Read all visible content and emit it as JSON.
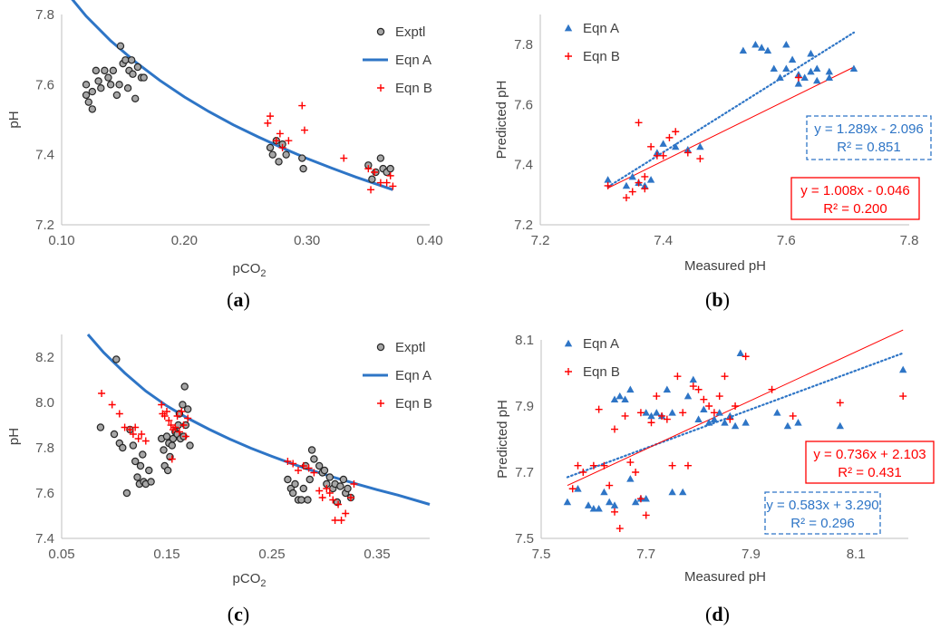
{
  "colors": {
    "exptl_fill": "#a6a6a6",
    "exptl_stroke": "#262626",
    "eqn_a": "#2e75c6",
    "eqn_b": "#ff0000"
  },
  "chart_data": [
    {
      "id": "a",
      "type": "scatter",
      "panel_label": "a",
      "xlabel": "pCO",
      "xlabel_sub": "2",
      "ylabel": "pH",
      "xlim": [
        0.1,
        0.4
      ],
      "ylim": [
        7.2,
        7.8
      ],
      "xticks": [
        "0.10",
        "0.20",
        "0.30",
        "0.40"
      ],
      "yticks": [
        "7.2",
        "7.4",
        "7.6",
        "7.8"
      ],
      "legend": [
        "Exptl",
        "Eqn A",
        "Eqn B"
      ],
      "curve": {
        "name": "Eqn A",
        "x": [
          0.1,
          0.12,
          0.14,
          0.16,
          0.18,
          0.2,
          0.22,
          0.24,
          0.26,
          0.28,
          0.3,
          0.32,
          0.34,
          0.36,
          0.37
        ],
        "y": [
          7.88,
          7.795,
          7.725,
          7.665,
          7.612,
          7.565,
          7.523,
          7.485,
          7.451,
          7.419,
          7.389,
          7.362,
          7.336,
          7.312,
          7.3
        ]
      },
      "exptl": [
        [
          0.12,
          7.6
        ],
        [
          0.12,
          7.57
        ],
        [
          0.122,
          7.55
        ],
        [
          0.125,
          7.53
        ],
        [
          0.125,
          7.58
        ],
        [
          0.128,
          7.64
        ],
        [
          0.13,
          7.61
        ],
        [
          0.132,
          7.59
        ],
        [
          0.135,
          7.64
        ],
        [
          0.138,
          7.62
        ],
        [
          0.14,
          7.6
        ],
        [
          0.142,
          7.64
        ],
        [
          0.145,
          7.57
        ],
        [
          0.147,
          7.6
        ],
        [
          0.148,
          7.71
        ],
        [
          0.15,
          7.66
        ],
        [
          0.152,
          7.67
        ],
        [
          0.154,
          7.59
        ],
        [
          0.155,
          7.64
        ],
        [
          0.157,
          7.67
        ],
        [
          0.158,
          7.63
        ],
        [
          0.16,
          7.56
        ],
        [
          0.162,
          7.65
        ],
        [
          0.165,
          7.62
        ],
        [
          0.167,
          7.62
        ],
        [
          0.27,
          7.42
        ],
        [
          0.272,
          7.4
        ],
        [
          0.275,
          7.44
        ],
        [
          0.277,
          7.38
        ],
        [
          0.28,
          7.43
        ],
        [
          0.283,
          7.4
        ],
        [
          0.296,
          7.39
        ],
        [
          0.297,
          7.36
        ],
        [
          0.35,
          7.37
        ],
        [
          0.353,
          7.33
        ],
        [
          0.356,
          7.35
        ],
        [
          0.36,
          7.39
        ],
        [
          0.362,
          7.36
        ],
        [
          0.365,
          7.35
        ],
        [
          0.368,
          7.36
        ]
      ],
      "eqnb": [
        [
          0.268,
          7.49
        ],
        [
          0.27,
          7.51
        ],
        [
          0.275,
          7.44
        ],
        [
          0.278,
          7.46
        ],
        [
          0.28,
          7.42
        ],
        [
          0.285,
          7.44
        ],
        [
          0.296,
          7.54
        ],
        [
          0.298,
          7.47
        ],
        [
          0.33,
          7.39
        ],
        [
          0.35,
          7.36
        ],
        [
          0.352,
          7.3
        ],
        [
          0.355,
          7.35
        ],
        [
          0.36,
          7.32
        ],
        [
          0.365,
          7.32
        ],
        [
          0.368,
          7.34
        ],
        [
          0.37,
          7.31
        ]
      ]
    },
    {
      "id": "b",
      "type": "scatter",
      "panel_label": "b",
      "xlabel": "Measured pH",
      "ylabel": "Predicted pH",
      "xlim": [
        7.2,
        7.8
      ],
      "ylim": [
        7.2,
        7.9
      ],
      "xticks": [
        "7.2",
        "7.4",
        "7.6",
        "7.8"
      ],
      "yticks": [
        "7.2",
        "7.4",
        "7.6",
        "7.8"
      ],
      "legend": [
        "Eqn A",
        "Eqn B"
      ],
      "eqn_a": [
        [
          7.31,
          7.35
        ],
        [
          7.34,
          7.33
        ],
        [
          7.35,
          7.36
        ],
        [
          7.36,
          7.34
        ],
        [
          7.37,
          7.33
        ],
        [
          7.38,
          7.35
        ],
        [
          7.39,
          7.44
        ],
        [
          7.4,
          7.47
        ],
        [
          7.42,
          7.46
        ],
        [
          7.44,
          7.45
        ],
        [
          7.46,
          7.46
        ],
        [
          7.53,
          7.78
        ],
        [
          7.55,
          7.8
        ],
        [
          7.56,
          7.79
        ],
        [
          7.57,
          7.78
        ],
        [
          7.58,
          7.72
        ],
        [
          7.59,
          7.69
        ],
        [
          7.6,
          7.72
        ],
        [
          7.6,
          7.8
        ],
        [
          7.61,
          7.75
        ],
        [
          7.62,
          7.67
        ],
        [
          7.62,
          7.7
        ],
        [
          7.63,
          7.69
        ],
        [
          7.64,
          7.71
        ],
        [
          7.64,
          7.77
        ],
        [
          7.65,
          7.72
        ],
        [
          7.65,
          7.68
        ],
        [
          7.67,
          7.71
        ],
        [
          7.67,
          7.69
        ],
        [
          7.71,
          7.72
        ]
      ],
      "eqn_b": [
        [
          7.31,
          7.33
        ],
        [
          7.34,
          7.29
        ],
        [
          7.35,
          7.31
        ],
        [
          7.36,
          7.34
        ],
        [
          7.37,
          7.32
        ],
        [
          7.36,
          7.54
        ],
        [
          7.37,
          7.36
        ],
        [
          7.38,
          7.46
        ],
        [
          7.39,
          7.43
        ],
        [
          7.4,
          7.43
        ],
        [
          7.41,
          7.49
        ],
        [
          7.42,
          7.51
        ],
        [
          7.44,
          7.44
        ],
        [
          7.46,
          7.42
        ],
        [
          7.62,
          7.69
        ]
      ],
      "trend_a": {
        "x": [
          7.31,
          7.71
        ],
        "y": [
          7.326,
          7.84
        ],
        "label": "y = 1.289x - 2.096",
        "r2": "R² = 0.851"
      },
      "trend_b": {
        "x": [
          7.31,
          7.71
        ],
        "y": [
          7.322,
          7.725
        ],
        "label": "y = 1.008x - 0.046",
        "r2": "R² = 0.200"
      }
    },
    {
      "id": "c",
      "type": "scatter",
      "panel_label": "c",
      "xlabel": "pCO",
      "xlabel_sub": "2",
      "ylabel": "pH",
      "xlim": [
        0.05,
        0.4
      ],
      "ylim": [
        7.4,
        8.3
      ],
      "xticks": [
        "0.05",
        "0.15",
        "0.25",
        "0.35"
      ],
      "yticks": [
        "7.4",
        "7.6",
        "7.8",
        "8.0",
        "8.2"
      ],
      "legend": [
        "Exptl",
        "Eqn A",
        "Eqn B"
      ],
      "curve": {
        "name": "Eqn A",
        "x": [
          0.075,
          0.09,
          0.11,
          0.13,
          0.15,
          0.17,
          0.19,
          0.21,
          0.23,
          0.25,
          0.27,
          0.29,
          0.31,
          0.33,
          0.35,
          0.37,
          0.4
        ],
        "y": [
          8.3,
          8.22,
          8.13,
          8.05,
          7.985,
          7.93,
          7.882,
          7.838,
          7.798,
          7.762,
          7.728,
          7.697,
          7.668,
          7.641,
          7.615,
          7.591,
          7.55
        ]
      },
      "exptl": [
        [
          0.087,
          7.89
        ],
        [
          0.1,
          7.86
        ],
        [
          0.102,
          8.19
        ],
        [
          0.105,
          7.82
        ],
        [
          0.108,
          7.8
        ],
        [
          0.112,
          7.6
        ],
        [
          0.115,
          7.88
        ],
        [
          0.118,
          7.81
        ],
        [
          0.12,
          7.74
        ],
        [
          0.122,
          7.67
        ],
        [
          0.124,
          7.64
        ],
        [
          0.125,
          7.72
        ],
        [
          0.127,
          7.77
        ],
        [
          0.128,
          7.65
        ],
        [
          0.13,
          7.64
        ],
        [
          0.133,
          7.7
        ],
        [
          0.135,
          7.65
        ],
        [
          0.145,
          7.84
        ],
        [
          0.147,
          7.79
        ],
        [
          0.148,
          7.72
        ],
        [
          0.15,
          7.85
        ],
        [
          0.151,
          7.7
        ],
        [
          0.152,
          7.82
        ],
        [
          0.153,
          7.76
        ],
        [
          0.155,
          7.81
        ],
        [
          0.156,
          7.84
        ],
        [
          0.158,
          7.87
        ],
        [
          0.16,
          7.86
        ],
        [
          0.161,
          7.9
        ],
        [
          0.162,
          7.95
        ],
        [
          0.163,
          7.84
        ],
        [
          0.165,
          7.99
        ],
        [
          0.166,
          7.85
        ],
        [
          0.167,
          8.07
        ],
        [
          0.168,
          7.9
        ],
        [
          0.17,
          7.97
        ],
        [
          0.172,
          7.81
        ],
        [
          0.265,
          7.66
        ],
        [
          0.268,
          7.62
        ],
        [
          0.27,
          7.6
        ],
        [
          0.272,
          7.64
        ],
        [
          0.275,
          7.57
        ],
        [
          0.278,
          7.57
        ],
        [
          0.28,
          7.62
        ],
        [
          0.282,
          7.72
        ],
        [
          0.284,
          7.57
        ],
        [
          0.286,
          7.66
        ],
        [
          0.288,
          7.79
        ],
        [
          0.29,
          7.75
        ],
        [
          0.295,
          7.72
        ],
        [
          0.298,
          7.69
        ],
        [
          0.3,
          7.7
        ],
        [
          0.302,
          7.64
        ],
        [
          0.305,
          7.67
        ],
        [
          0.308,
          7.62
        ],
        [
          0.31,
          7.64
        ],
        [
          0.312,
          7.56
        ],
        [
          0.315,
          7.63
        ],
        [
          0.318,
          7.66
        ],
        [
          0.32,
          7.6
        ],
        [
          0.322,
          7.62
        ],
        [
          0.325,
          7.58
        ]
      ],
      "eqnb": [
        [
          0.088,
          8.04
        ],
        [
          0.098,
          7.99
        ],
        [
          0.105,
          7.95
        ],
        [
          0.11,
          7.89
        ],
        [
          0.115,
          7.88
        ],
        [
          0.118,
          7.86
        ],
        [
          0.12,
          7.89
        ],
        [
          0.123,
          7.84
        ],
        [
          0.126,
          7.86
        ],
        [
          0.13,
          7.83
        ],
        [
          0.145,
          7.99
        ],
        [
          0.146,
          7.95
        ],
        [
          0.148,
          7.94
        ],
        [
          0.15,
          7.96
        ],
        [
          0.152,
          7.92
        ],
        [
          0.154,
          7.9
        ],
        [
          0.155,
          7.75
        ],
        [
          0.156,
          7.88
        ],
        [
          0.158,
          7.89
        ],
        [
          0.16,
          7.94
        ],
        [
          0.162,
          7.87
        ],
        [
          0.164,
          7.96
        ],
        [
          0.166,
          7.9
        ],
        [
          0.168,
          7.85
        ],
        [
          0.17,
          7.93
        ],
        [
          0.265,
          7.74
        ],
        [
          0.27,
          7.73
        ],
        [
          0.275,
          7.7
        ],
        [
          0.28,
          7.72
        ],
        [
          0.285,
          7.71
        ],
        [
          0.29,
          7.69
        ],
        [
          0.295,
          7.61
        ],
        [
          0.298,
          7.58
        ],
        [
          0.302,
          7.62
        ],
        [
          0.305,
          7.6
        ],
        [
          0.308,
          7.57
        ],
        [
          0.31,
          7.48
        ],
        [
          0.313,
          7.55
        ],
        [
          0.316,
          7.48
        ],
        [
          0.32,
          7.51
        ],
        [
          0.325,
          7.58
        ],
        [
          0.328,
          7.64
        ]
      ]
    },
    {
      "id": "d",
      "type": "scatter",
      "panel_label": "d",
      "xlabel": "Measured pH",
      "ylabel": "Predicted pH",
      "xlim": [
        7.5,
        8.2
      ],
      "ylim": [
        7.5,
        8.1
      ],
      "xticks": [
        "7.5",
        "7.7",
        "7.9",
        "8.1"
      ],
      "yticks": [
        "7.5",
        "7.7",
        "7.9",
        "8.1"
      ],
      "legend": [
        "Eqn A",
        "Eqn B"
      ],
      "eqn_a": [
        [
          7.55,
          7.61
        ],
        [
          7.57,
          7.65
        ],
        [
          7.59,
          7.6
        ],
        [
          7.6,
          7.59
        ],
        [
          7.61,
          7.59
        ],
        [
          7.62,
          7.64
        ],
        [
          7.63,
          7.61
        ],
        [
          7.64,
          7.6
        ],
        [
          7.64,
          7.92
        ],
        [
          7.65,
          7.93
        ],
        [
          7.66,
          7.92
        ],
        [
          7.67,
          7.68
        ],
        [
          7.67,
          7.95
        ],
        [
          7.68,
          7.61
        ],
        [
          7.69,
          7.62
        ],
        [
          7.7,
          7.62
        ],
        [
          7.7,
          7.88
        ],
        [
          7.71,
          7.87
        ],
        [
          7.72,
          7.88
        ],
        [
          7.73,
          7.87
        ],
        [
          7.74,
          7.95
        ],
        [
          7.75,
          7.64
        ],
        [
          7.75,
          7.88
        ],
        [
          7.77,
          7.64
        ],
        [
          7.78,
          7.93
        ],
        [
          7.79,
          7.98
        ],
        [
          7.8,
          7.86
        ],
        [
          7.81,
          7.89
        ],
        [
          7.82,
          7.85
        ],
        [
          7.83,
          7.86
        ],
        [
          7.84,
          7.88
        ],
        [
          7.85,
          7.85
        ],
        [
          7.86,
          7.87
        ],
        [
          7.87,
          7.84
        ],
        [
          7.88,
          8.06
        ],
        [
          7.89,
          7.85
        ],
        [
          7.95,
          7.88
        ],
        [
          7.97,
          7.84
        ],
        [
          7.99,
          7.85
        ],
        [
          8.07,
          7.84
        ],
        [
          8.19,
          8.01
        ]
      ],
      "eqn_b": [
        [
          7.56,
          7.65
        ],
        [
          7.57,
          7.72
        ],
        [
          7.58,
          7.7
        ],
        [
          7.6,
          7.72
        ],
        [
          7.61,
          7.89
        ],
        [
          7.62,
          7.72
        ],
        [
          7.63,
          7.66
        ],
        [
          7.64,
          7.58
        ],
        [
          7.64,
          7.83
        ],
        [
          7.65,
          7.53
        ],
        [
          7.66,
          7.87
        ],
        [
          7.67,
          7.73
        ],
        [
          7.68,
          7.7
        ],
        [
          7.69,
          7.62
        ],
        [
          7.69,
          7.88
        ],
        [
          7.7,
          7.57
        ],
        [
          7.71,
          7.85
        ],
        [
          7.72,
          7.93
        ],
        [
          7.73,
          7.87
        ],
        [
          7.74,
          7.86
        ],
        [
          7.75,
          7.72
        ],
        [
          7.76,
          7.99
        ],
        [
          7.77,
          7.88
        ],
        [
          7.78,
          7.72
        ],
        [
          7.79,
          7.96
        ],
        [
          7.8,
          7.95
        ],
        [
          7.81,
          7.92
        ],
        [
          7.82,
          7.9
        ],
        [
          7.83,
          7.88
        ],
        [
          7.84,
          7.93
        ],
        [
          7.85,
          7.99
        ],
        [
          7.86,
          7.86
        ],
        [
          7.87,
          7.9
        ],
        [
          7.89,
          8.05
        ],
        [
          7.94,
          7.95
        ],
        [
          7.98,
          7.87
        ],
        [
          8.07,
          7.91
        ],
        [
          8.19,
          7.93
        ]
      ],
      "trend_a": {
        "x": [
          7.55,
          8.19
        ],
        "y": [
          7.685,
          8.06
        ],
        "label": "y = 0.583x + 3.290",
        "r2": "R² = 0.296"
      },
      "trend_b": {
        "x": [
          7.55,
          8.19
        ],
        "y": [
          7.66,
          8.13
        ],
        "label": "y = 0.736x + 2.103",
        "r2": "R² = 0.431"
      }
    }
  ]
}
